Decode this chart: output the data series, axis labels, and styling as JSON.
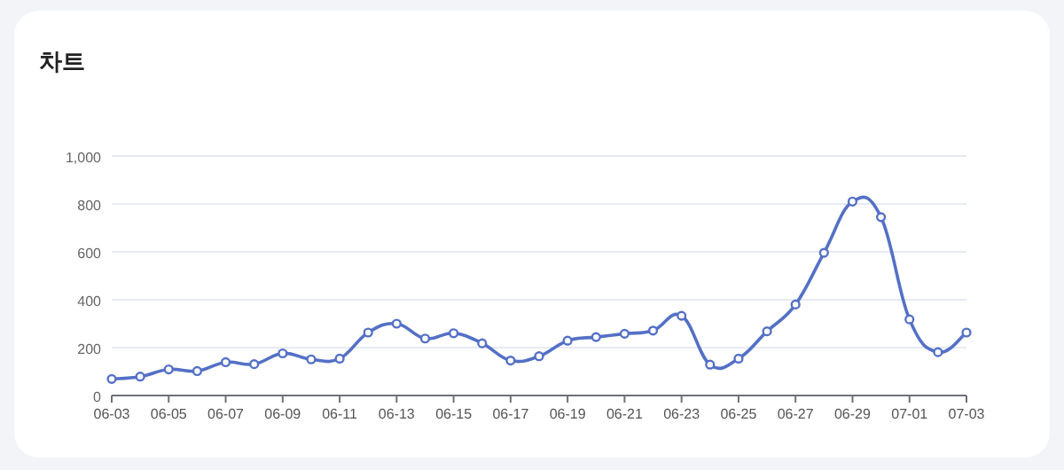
{
  "chart_data": {
    "type": "line",
    "title": "차트",
    "categories": [
      "06-03",
      null,
      "06-05",
      null,
      "06-07",
      null,
      "06-09",
      null,
      "06-11",
      null,
      "06-13",
      null,
      "06-15",
      null,
      "06-17",
      null,
      "06-19",
      null,
      "06-21",
      null,
      "06-23",
      null,
      "06-25",
      null,
      "06-27",
      null,
      "06-29",
      null,
      "07-01",
      null,
      "07-03"
    ],
    "series": [
      {
        "color": "#5470c6",
        "values": [
          69,
          79,
          109,
          102,
          139,
          131,
          176,
          151,
          154,
          263,
          300,
          238,
          260,
          218,
          146,
          164,
          229,
          244,
          258,
          271,
          333,
          129,
          154,
          268,
          380,
          596,
          810,
          745,
          318,
          181,
          263
        ]
      }
    ],
    "ylim": [
      0,
      1000
    ],
    "yticks": [
      0,
      200,
      400,
      600,
      800,
      {
        "value": 1000,
        "label": "1,000"
      }
    ],
    "grid": "y",
    "marker": "circle",
    "line_style": "solid"
  }
}
